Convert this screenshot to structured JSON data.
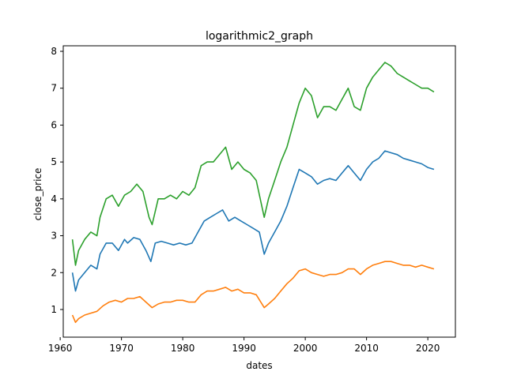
{
  "chart_data": {
    "type": "line",
    "title": "logarithmic2_graph",
    "xlabel": "dates",
    "ylabel": "close_price",
    "xlim": [
      1960.5,
      2024.5
    ],
    "ylim": [
      0.25,
      8.15
    ],
    "xticks": [
      1960,
      1970,
      1980,
      1990,
      2000,
      2010,
      2020
    ],
    "yticks": [
      1,
      2,
      3,
      4,
      5,
      6,
      7,
      8
    ],
    "grid": false,
    "legend": "none",
    "series": [
      {
        "color": "#1f77b4",
        "x": [
          1962.0,
          1962.5,
          1963.0,
          1964.0,
          1965.0,
          1966.0,
          1966.5,
          1967.5,
          1968.5,
          1969.5,
          1970.5,
          1971.0,
          1972.0,
          1973.0,
          1974.0,
          1974.8,
          1975.5,
          1976.5,
          1977.5,
          1978.5,
          1979.5,
          1980.5,
          1981.5,
          1982.5,
          1983.5,
          1984.5,
          1985.5,
          1986.5,
          1987.5,
          1988.5,
          1989.5,
          1990.5,
          1991.5,
          1992.5,
          1993.3,
          1994.0,
          1995.0,
          1996.0,
          1997.0,
          1998.0,
          1999.0,
          2000.0,
          2001.0,
          2002.0,
          2003.0,
          2004.0,
          2005.0,
          2006.0,
          2007.0,
          2008.0,
          2009.0,
          2010.0,
          2011.0,
          2012.0,
          2013.0,
          2014.0,
          2015.0,
          2016.0,
          2017.0,
          2018.0,
          2019.0,
          2020.0,
          2021.0
        ],
        "y": [
          2.0,
          1.5,
          1.8,
          2.0,
          2.2,
          2.1,
          2.5,
          2.8,
          2.8,
          2.6,
          2.9,
          2.8,
          2.95,
          2.9,
          2.6,
          2.3,
          2.8,
          2.85,
          2.8,
          2.75,
          2.8,
          2.75,
          2.8,
          3.1,
          3.4,
          3.5,
          3.6,
          3.7,
          3.4,
          3.5,
          3.4,
          3.3,
          3.2,
          3.1,
          2.5,
          2.8,
          3.1,
          3.4,
          3.8,
          4.3,
          4.8,
          4.7,
          4.6,
          4.4,
          4.5,
          4.55,
          4.5,
          4.7,
          4.9,
          4.7,
          4.5,
          4.8,
          5.0,
          5.1,
          5.3,
          5.25,
          5.2,
          5.1,
          5.05,
          5.0,
          4.95,
          4.85,
          4.8
        ]
      },
      {
        "color": "#ff7f0e",
        "x": [
          1962.0,
          1962.5,
          1963.0,
          1964.0,
          1965.0,
          1966.0,
          1967.0,
          1968.0,
          1969.0,
          1970.0,
          1971.0,
          1972.0,
          1973.0,
          1974.0,
          1975.0,
          1976.0,
          1977.0,
          1978.0,
          1979.0,
          1980.0,
          1981.0,
          1982.0,
          1983.0,
          1984.0,
          1985.0,
          1986.0,
          1987.0,
          1988.0,
          1989.0,
          1990.0,
          1991.0,
          1992.0,
          1993.3,
          1994.0,
          1995.0,
          1996.0,
          1997.0,
          1998.0,
          1999.0,
          2000.0,
          2001.0,
          2002.0,
          2003.0,
          2004.0,
          2005.0,
          2006.0,
          2007.0,
          2008.0,
          2009.0,
          2010.0,
          2011.0,
          2012.0,
          2013.0,
          2014.0,
          2015.0,
          2016.0,
          2017.0,
          2018.0,
          2019.0,
          2020.0,
          2021.0
        ],
        "y": [
          0.85,
          0.65,
          0.75,
          0.85,
          0.9,
          0.95,
          1.1,
          1.2,
          1.25,
          1.2,
          1.3,
          1.3,
          1.35,
          1.2,
          1.05,
          1.15,
          1.2,
          1.2,
          1.25,
          1.25,
          1.2,
          1.2,
          1.4,
          1.5,
          1.5,
          1.55,
          1.6,
          1.5,
          1.55,
          1.45,
          1.45,
          1.4,
          1.05,
          1.15,
          1.3,
          1.5,
          1.7,
          1.85,
          2.05,
          2.1,
          2.0,
          1.95,
          1.9,
          1.95,
          1.95,
          2.0,
          2.1,
          2.1,
          1.95,
          2.1,
          2.2,
          2.25,
          2.3,
          2.3,
          2.25,
          2.2,
          2.2,
          2.15,
          2.2,
          2.15,
          2.1
        ]
      },
      {
        "color": "#2ca02c",
        "x": [
          1962.0,
          1962.5,
          1963.0,
          1964.0,
          1965.0,
          1966.0,
          1966.5,
          1967.5,
          1968.5,
          1969.5,
          1970.5,
          1971.5,
          1972.5,
          1973.5,
          1974.5,
          1975.0,
          1976.0,
          1977.0,
          1978.0,
          1979.0,
          1980.0,
          1981.0,
          1982.0,
          1983.0,
          1984.0,
          1985.0,
          1986.0,
          1987.0,
          1988.0,
          1989.0,
          1990.0,
          1991.0,
          1992.0,
          1993.3,
          1994.0,
          1995.0,
          1996.0,
          1997.0,
          1998.0,
          1999.0,
          2000.0,
          2001.0,
          2002.0,
          2003.0,
          2004.0,
          2005.0,
          2006.0,
          2007.0,
          2008.0,
          2009.0,
          2010.0,
          2011.0,
          2012.0,
          2013.0,
          2014.0,
          2015.0,
          2016.0,
          2017.0,
          2018.0,
          2019.0,
          2020.0,
          2021.0
        ],
        "y": [
          2.9,
          2.2,
          2.6,
          2.9,
          3.1,
          3.0,
          3.5,
          4.0,
          4.1,
          3.8,
          4.1,
          4.2,
          4.4,
          4.2,
          3.5,
          3.3,
          4.0,
          4.0,
          4.1,
          4.0,
          4.2,
          4.1,
          4.3,
          4.9,
          5.0,
          5.0,
          5.2,
          5.4,
          4.8,
          5.0,
          4.8,
          4.7,
          4.5,
          3.5,
          4.0,
          4.5,
          5.0,
          5.4,
          6.0,
          6.6,
          7.0,
          6.8,
          6.2,
          6.5,
          6.5,
          6.4,
          6.7,
          7.0,
          6.5,
          6.4,
          7.0,
          7.3,
          7.5,
          7.7,
          7.6,
          7.4,
          7.3,
          7.2,
          7.1,
          7.0,
          7.0,
          6.9
        ]
      }
    ]
  }
}
